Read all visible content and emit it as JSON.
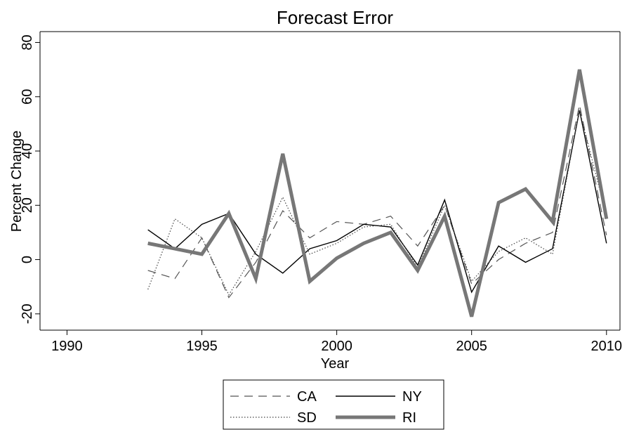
{
  "chart_data": {
    "type": "line",
    "title": "Forecast Error",
    "x_label": "Year",
    "y_label": "Percent Change",
    "x": [
      1993,
      1994,
      1995,
      1996,
      1997,
      1998,
      1999,
      2000,
      2001,
      2002,
      2003,
      2004,
      2005,
      2006,
      2007,
      2008,
      2009,
      2010
    ],
    "series": [
      {
        "name": "CA",
        "color": "#555555",
        "style": "dashed",
        "values": [
          -4,
          -7,
          8,
          -14,
          -1,
          18,
          8,
          14,
          13,
          16,
          5,
          20,
          -9,
          0,
          6,
          10,
          57,
          9
        ]
      },
      {
        "name": "NY",
        "color": "#000000",
        "style": "solid",
        "values": [
          11,
          4,
          13,
          17,
          2,
          -5,
          4,
          7,
          13,
          12,
          -2,
          22,
          -12,
          5,
          -1,
          4,
          55,
          6
        ]
      },
      {
        "name": "SD",
        "color": "#444444",
        "style": "dotted",
        "values": [
          -11,
          15,
          8,
          -13,
          3,
          23,
          2,
          6,
          12,
          13,
          -3,
          20,
          -8,
          3,
          8,
          2,
          55,
          16
        ]
      },
      {
        "name": "RI",
        "color": "#777777",
        "style": "thick",
        "values": [
          6,
          4,
          2,
          17,
          -7,
          39,
          -8,
          0.5,
          6,
          10,
          -4,
          16,
          -21,
          21,
          26,
          14,
          70,
          15
        ]
      }
    ],
    "xlim": [
      1989,
      2010.5
    ],
    "ylim": [
      -26,
      84
    ],
    "xticks": [
      1990,
      1995,
      2000,
      2005,
      2010
    ],
    "yticks": [
      -20,
      0,
      20,
      40,
      60,
      80
    ],
    "legend": "bottom"
  }
}
